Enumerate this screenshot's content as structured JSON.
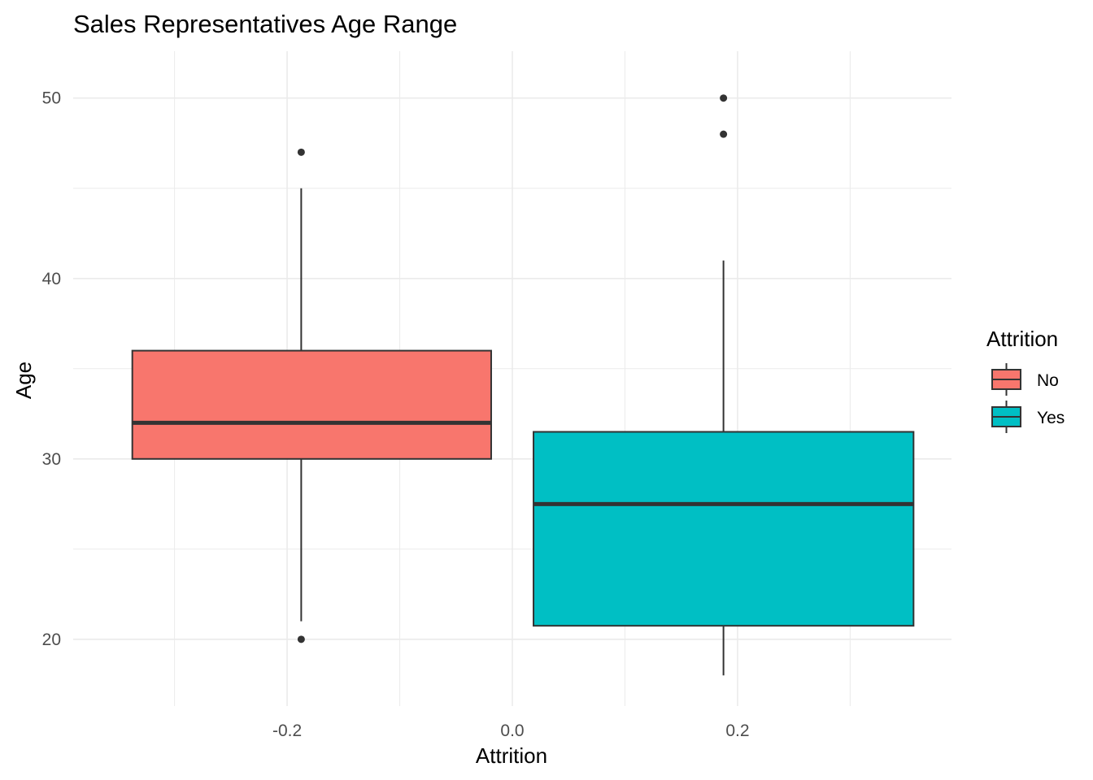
{
  "chart_data": {
    "type": "boxplot",
    "title": "Sales Representatives Age Range",
    "xlabel": "Attrition",
    "ylabel": "Age",
    "xlim": [
      -0.39,
      0.39
    ],
    "ylim": [
      16.3,
      52.6
    ],
    "x_ticks": [
      -0.2,
      0.0,
      0.2
    ],
    "x_tick_labels": [
      "-0.2",
      "0.0",
      "0.2"
    ],
    "y_ticks": [
      20,
      30,
      40,
      50
    ],
    "y_tick_labels": [
      "20",
      "30",
      "40",
      "50"
    ],
    "grid": true,
    "legend": {
      "title": "Attrition",
      "position": "right"
    },
    "series": [
      {
        "name": "No",
        "color": "#F8766D",
        "x_min": -0.3375,
        "x_max": -0.0188,
        "whisker_x": -0.1875,
        "q1": 30,
        "median": 32,
        "q3": 36,
        "whisker_low": 21,
        "whisker_high": 45,
        "outliers": [
          47,
          20
        ]
      },
      {
        "name": "Yes",
        "color": "#00BFC4",
        "x_min": 0.0188,
        "x_max": 0.3563,
        "whisker_x": 0.1875,
        "q1": 20.75,
        "median": 27.5,
        "q3": 31.5,
        "whisker_low": 18,
        "whisker_high": 41,
        "outliers": [
          50,
          48
        ]
      }
    ]
  }
}
